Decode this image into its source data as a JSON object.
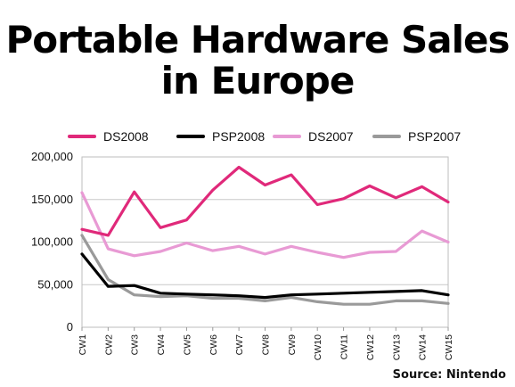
{
  "title_line1": "Portable Hardware Sales",
  "title_line2": "in Europe",
  "source": "Source: Nintendo",
  "chart_data": {
    "type": "line",
    "title": "Portable Hardware Sales in Europe",
    "xlabel": "",
    "ylabel": "",
    "ylim": [
      0,
      200000
    ],
    "yticks": [
      "0",
      "50,000",
      "100,000",
      "150,000",
      "200,000"
    ],
    "ytick_values": [
      0,
      50000,
      100000,
      150000,
      200000
    ],
    "grid": "horizontal",
    "legend_position": "top",
    "categories": [
      "CW1",
      "CW2",
      "CW3",
      "CW4",
      "CW5",
      "CW6",
      "CW7",
      "CW8",
      "CW9",
      "CW10",
      "CW11",
      "CW12",
      "CW13",
      "CW14",
      "CW15"
    ],
    "series": [
      {
        "name": "DS2008",
        "color": "#e0297a",
        "values": [
          115000,
          108000,
          159000,
          117000,
          126000,
          161000,
          188000,
          167000,
          179000,
          144000,
          151000,
          166000,
          152000,
          165000,
          147000
        ]
      },
      {
        "name": "PSP2008",
        "color": "#000000",
        "values": [
          86000,
          48000,
          49000,
          40000,
          39000,
          38000,
          37000,
          35000,
          38000,
          39000,
          40000,
          41000,
          42000,
          43000,
          38000
        ]
      },
      {
        "name": "DS2007",
        "color": "#e89ad4",
        "values": [
          158000,
          92000,
          84000,
          89000,
          99000,
          90000,
          95000,
          86000,
          95000,
          88000,
          82000,
          88000,
          89000,
          113000,
          100000
        ]
      },
      {
        "name": "PSP2007",
        "color": "#9a9a9a",
        "values": [
          108000,
          56000,
          38000,
          36000,
          37000,
          34000,
          34000,
          31000,
          35000,
          30000,
          27000,
          27000,
          31000,
          31000,
          28000
        ]
      }
    ]
  }
}
